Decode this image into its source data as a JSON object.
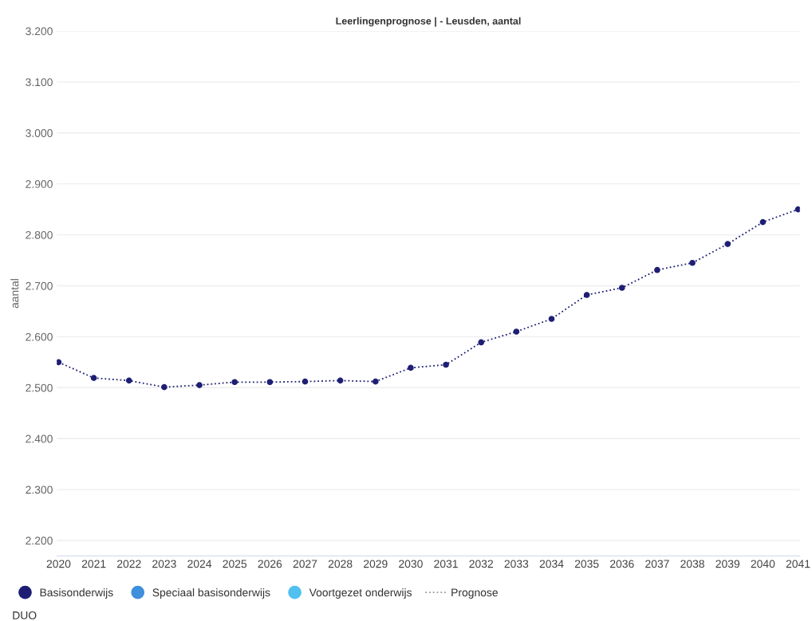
{
  "chart_data": {
    "type": "line",
    "title": "Leerlingenprognose | - Leusden, aantal",
    "ylabel": "aantal",
    "categories": [
      "2020",
      "2021",
      "2022",
      "2023",
      "2024",
      "2025",
      "2026",
      "2027",
      "2028",
      "2029",
      "2030",
      "2031",
      "2032",
      "2033",
      "2034",
      "2035",
      "2036",
      "2037",
      "2038",
      "2039",
      "2040",
      "2041"
    ],
    "series": [
      {
        "name": "Basisonderwijs",
        "color": "#1e1f74",
        "marker": "circle",
        "line_style": "dotted",
        "values": [
          2550,
          2519,
          2514,
          2501,
          2505,
          2511,
          2511,
          2512,
          2514,
          2512,
          2539,
          2545,
          2589,
          2610,
          2635,
          2682,
          2696,
          2731,
          2745,
          2782,
          2825,
          2850
        ]
      },
      {
        "name": "Speciaal basisonderwijs",
        "color": "#3e8fdc",
        "marker": "circle",
        "values": [
          null,
          null,
          null,
          null,
          null,
          null,
          null,
          null,
          null,
          null,
          null,
          null,
          null,
          null,
          null,
          null,
          null,
          null,
          null,
          null,
          null,
          null
        ]
      },
      {
        "name": "Voortgezet onderwijs",
        "color": "#4fc0f0",
        "marker": "circle",
        "values": [
          null,
          null,
          null,
          null,
          null,
          null,
          null,
          null,
          null,
          null,
          null,
          null,
          null,
          null,
          null,
          null,
          null,
          null,
          null,
          null,
          null,
          null
        ]
      },
      {
        "name": "Prognose",
        "color": "#999999",
        "marker": "none",
        "line_style": "dotted",
        "values": [
          null,
          null,
          null,
          null,
          null,
          null,
          null,
          null,
          null,
          null,
          null,
          null,
          null,
          null,
          null,
          null,
          null,
          null,
          null,
          null,
          null,
          null
        ]
      }
    ],
    "ylim": [
      2170,
      3200
    ],
    "yticks": [
      {
        "value": 2200,
        "label": "2.200"
      },
      {
        "value": 2300,
        "label": "2.300"
      },
      {
        "value": 2400,
        "label": "2.400"
      },
      {
        "value": 2500,
        "label": "2.500"
      },
      {
        "value": 2600,
        "label": "2.600"
      },
      {
        "value": 2700,
        "label": "2.700"
      },
      {
        "value": 2800,
        "label": "2.800"
      },
      {
        "value": 2900,
        "label": "2.900"
      },
      {
        "value": 3000,
        "label": "3.000"
      },
      {
        "value": 3100,
        "label": "3.100"
      },
      {
        "value": 3200,
        "label": "3.200"
      }
    ],
    "grid": "y",
    "legend": "bottom left",
    "annotations": [
      "DUO"
    ]
  }
}
